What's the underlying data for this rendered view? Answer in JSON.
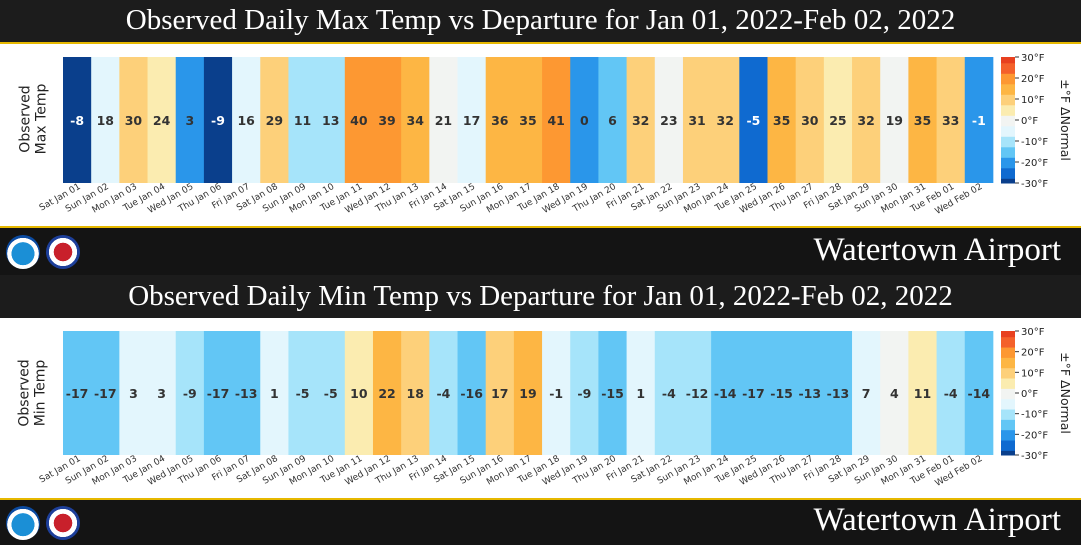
{
  "colors": {
    "scale": [
      "#0a3f8c",
      "#0f6ad0",
      "#2a96ea",
      "#62c6f5",
      "#a6e4fa",
      "#e3f6fd",
      "#f2f4f2",
      "#fbecb0",
      "#fdd07a",
      "#fdb644",
      "#fd9832",
      "#f4612b",
      "#e8401f"
    ]
  },
  "charts": [
    {
      "title": "Observed Daily Max Temp vs Departure for Jan 01, 2022-Feb 02, 2022",
      "ylabel": "Observed\nMax Temp",
      "station": "Watertown Airport",
      "legend_label": "±°F ΔNormal",
      "legend_ticks": [
        "30°F",
        "20°F",
        "10°F",
        "0°F",
        "-10°F",
        "-20°F",
        "-30°F"
      ],
      "logos": [
        "noaa-logo",
        "nws-logo"
      ]
    },
    {
      "title": "Observed Daily Min Temp vs Departure for Jan 01, 2022-Feb 02, 2022",
      "ylabel": "Observed\nMin Temp",
      "station": "Watertown Airport",
      "legend_label": "±°F ΔNormal",
      "legend_ticks": [
        "30°F",
        "20°F",
        "10°F",
        "0°F",
        "-10°F",
        "-20°F",
        "-30°F"
      ],
      "logos": [
        "noaa-logo",
        "nws-logo"
      ]
    }
  ],
  "chart_data": [
    {
      "type": "heatmap",
      "title": "Observed Daily Max Temp vs Departure for Jan 01, 2022-Feb 02, 2022",
      "ylabel": "Observed Max Temp",
      "categories": [
        "Sat Jan 01",
        "Sun Jan 02",
        "Mon Jan 03",
        "Tue Jan 04",
        "Wed Jan 05",
        "Thu Jan 06",
        "Fri Jan 07",
        "Sat Jan 08",
        "Sun Jan 09",
        "Mon Jan 10",
        "Tue Jan 11",
        "Wed Jan 12",
        "Thu Jan 13",
        "Fri Jan 14",
        "Sat Jan 15",
        "Sun Jan 16",
        "Mon Jan 17",
        "Tue Jan 18",
        "Wed Jan 19",
        "Thu Jan 20",
        "Fri Jan 21",
        "Sat Jan 22",
        "Sun Jan 23",
        "Mon Jan 24",
        "Tue Jan 25",
        "Wed Jan 26",
        "Thu Jan 27",
        "Fri Jan 28",
        "Sat Jan 29",
        "Sun Jan 30",
        "Mon Jan 31",
        "Tue Feb 01",
        "Wed Feb 02"
      ],
      "values": [
        -8,
        18,
        30,
        24,
        3,
        -9,
        16,
        29,
        11,
        13,
        40,
        39,
        34,
        21,
        17,
        36,
        35,
        41,
        0,
        6,
        32,
        23,
        31,
        32,
        -5,
        35,
        30,
        25,
        32,
        19,
        35,
        33,
        -1
      ],
      "departure_approx": [
        -28,
        -3,
        9,
        3,
        -18,
        -29,
        -5,
        8,
        -10,
        -8,
        19,
        18,
        13,
        0,
        -4,
        15,
        14,
        20,
        -21,
        -15,
        11,
        2,
        10,
        11,
        -26,
        14,
        9,
        4,
        11,
        -2,
        14,
        12,
        -22
      ],
      "color_range": [
        -30,
        30
      ]
    },
    {
      "type": "heatmap",
      "title": "Observed Daily Min Temp vs Departure for Jan 01, 2022-Feb 02, 2022",
      "ylabel": "Observed Min Temp",
      "categories": [
        "Sat Jan 01",
        "Sun Jan 02",
        "Mon Jan 03",
        "Tue Jan 04",
        "Wed Jan 05",
        "Thu Jan 06",
        "Fri Jan 07",
        "Sat Jan 08",
        "Sun Jan 09",
        "Mon Jan 10",
        "Tue Jan 11",
        "Wed Jan 12",
        "Thu Jan 13",
        "Fri Jan 14",
        "Sat Jan 15",
        "Sun Jan 16",
        "Mon Jan 17",
        "Tue Jan 18",
        "Wed Jan 19",
        "Thu Jan 20",
        "Fri Jan 21",
        "Sat Jan 22",
        "Sun Jan 23",
        "Mon Jan 24",
        "Tue Jan 25",
        "Wed Jan 26",
        "Thu Jan 27",
        "Fri Jan 28",
        "Sat Jan 29",
        "Sun Jan 30",
        "Mon Jan 31",
        "Tue Feb 01",
        "Wed Feb 02"
      ],
      "values": [
        -17,
        -17,
        3,
        3,
        -9,
        -17,
        -13,
        1,
        -5,
        -5,
        10,
        22,
        18,
        -4,
        -16,
        17,
        19,
        -1,
        -9,
        -15,
        1,
        -4,
        -12,
        -14,
        -17,
        -15,
        -13,
        -13,
        7,
        4,
        11,
        -4,
        -14
      ],
      "departure_approx": [
        -17,
        -17,
        -4,
        -4,
        -12,
        -17,
        -15,
        -4,
        -10,
        -10,
        5,
        15,
        12,
        -8,
        -16,
        12,
        13,
        -5,
        -10,
        -15,
        -5,
        -8,
        -12,
        -14,
        -15,
        -14,
        -13,
        -13,
        -3,
        -2,
        5,
        -8,
        -13
      ],
      "color_range": [
        -30,
        30
      ]
    }
  ]
}
